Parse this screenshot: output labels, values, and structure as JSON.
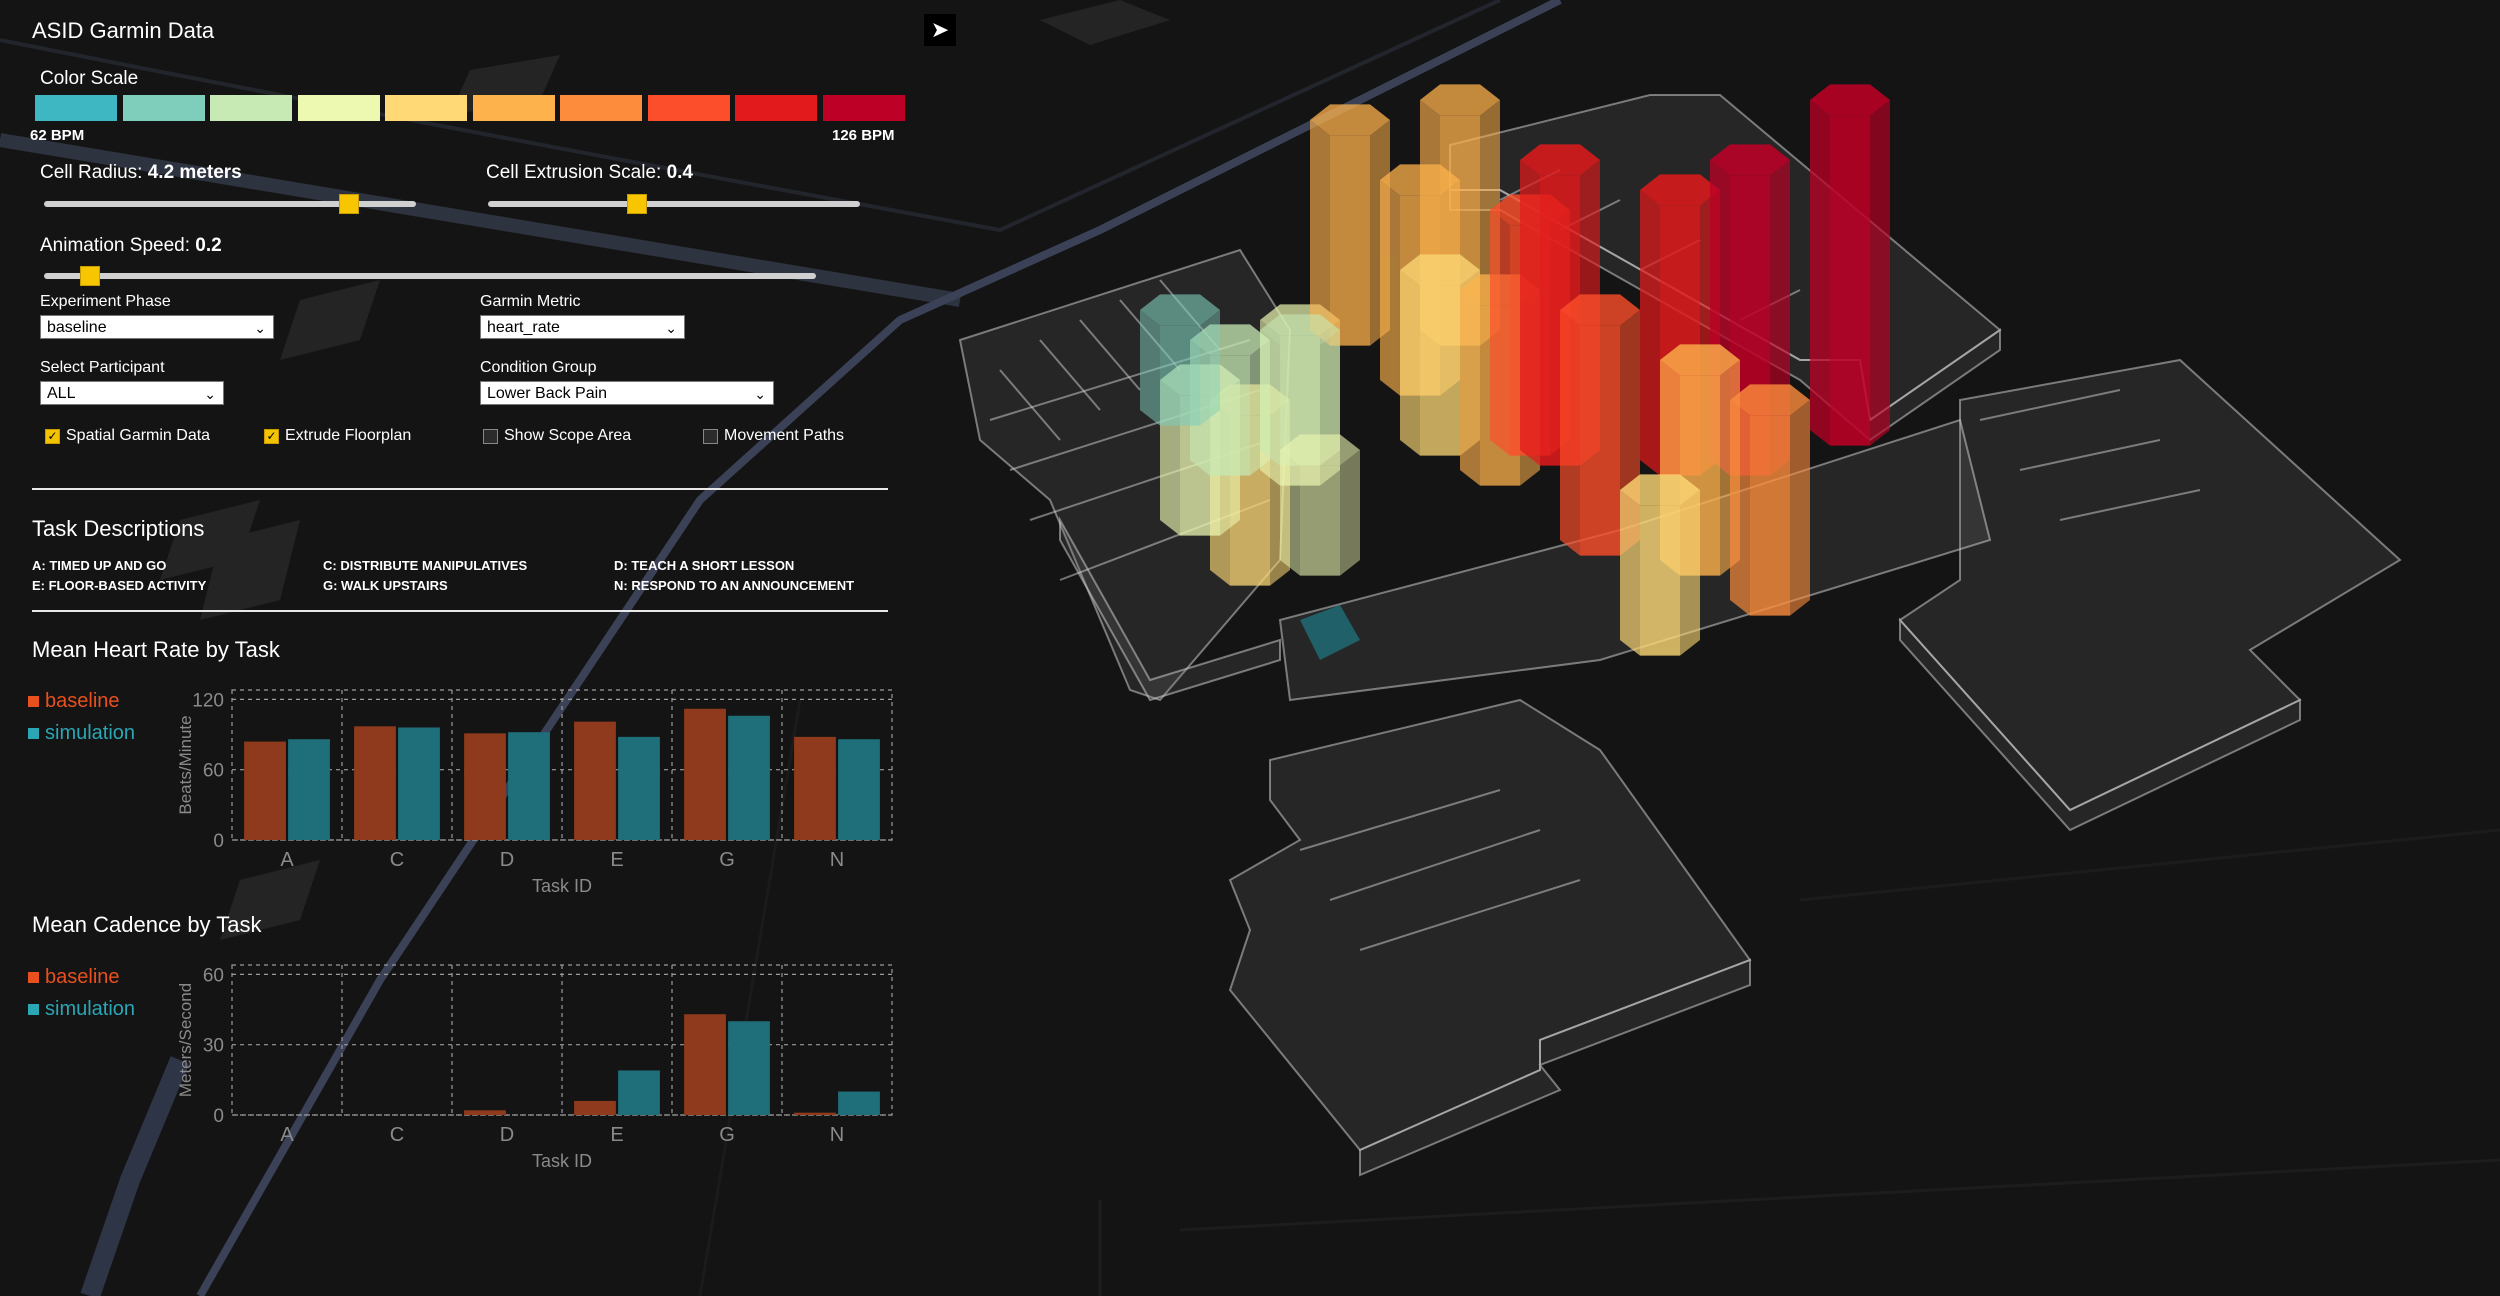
{
  "app": {
    "title": "ASID Garmin Data"
  },
  "color_scale": {
    "label": "Color Scale",
    "min_label": "62 BPM",
    "max_label": "126 BPM",
    "colors": [
      "#3fb7c2",
      "#7fcdbb",
      "#c7e9b4",
      "#edf8b1",
      "#fed976",
      "#feb24c",
      "#fd8d3c",
      "#fc4e2a",
      "#e31a1c",
      "#bd0026"
    ]
  },
  "controls": {
    "cell_radius": {
      "label": "Cell Radius: ",
      "value": "4.2 meters",
      "fraction": 0.82
    },
    "cell_extrusion": {
      "label": "Cell Extrusion Scale: ",
      "value": "0.4",
      "fraction": 0.4
    },
    "animation_speed": {
      "label": "Animation Speed: ",
      "value": "0.2",
      "fraction": 0.06
    },
    "experiment_phase": {
      "label": "Experiment Phase",
      "value": "baseline"
    },
    "garmin_metric": {
      "label": "Garmin Metric",
      "value": "heart_rate"
    },
    "participant": {
      "label": "Select Participant",
      "value": "ALL"
    },
    "condition_group": {
      "label": "Condition Group",
      "value": "Lower Back Pain"
    },
    "checkboxes": [
      {
        "label": "Spatial Garmin Data",
        "checked": true
      },
      {
        "label": "Extrude Floorplan",
        "checked": true
      },
      {
        "label": "Show Scope Area",
        "checked": false
      },
      {
        "label": "Movement Paths",
        "checked": false
      }
    ]
  },
  "tasks": {
    "title": "Task Descriptions",
    "items": [
      {
        "id": "A",
        "text": "A: TIMED UP AND GO"
      },
      {
        "id": "C",
        "text": "C: DISTRIBUTE MANIPULATIVES"
      },
      {
        "id": "D",
        "text": "D: TEACH A SHORT LESSON"
      },
      {
        "id": "E",
        "text": "E: FLOOR-BASED ACTIVITY"
      },
      {
        "id": "G",
        "text": "G: WALK UPSTAIRS"
      },
      {
        "id": "N",
        "text": "N: RESPOND TO AN ANNOUNCEMENT"
      }
    ]
  },
  "colors": {
    "baseline": "#e8501e",
    "simulation": "#2aa6b5",
    "baseline_bar": "#8f3a1c",
    "simulation_bar": "#1f6f7a"
  },
  "chart_data": [
    {
      "type": "bar",
      "title": "Mean Heart Rate by Task",
      "xlabel": "Task ID",
      "ylabel": "Beats/Minute",
      "categories": [
        "A",
        "C",
        "D",
        "E",
        "G",
        "N"
      ],
      "yticks": [
        0,
        60,
        120
      ],
      "ylim": [
        0,
        128
      ],
      "grid": true,
      "legend": "left",
      "series": [
        {
          "name": "baseline",
          "values": [
            84,
            97,
            91,
            101,
            112,
            88
          ]
        },
        {
          "name": "simulation",
          "values": [
            86,
            96,
            92,
            88,
            106,
            86
          ]
        }
      ]
    },
    {
      "type": "bar",
      "title": "Mean Cadence by Task",
      "xlabel": "Task ID",
      "ylabel": "Meters/Second",
      "categories": [
        "A",
        "C",
        "D",
        "E",
        "G",
        "N"
      ],
      "yticks": [
        0,
        30,
        60
      ],
      "ylim": [
        0,
        64
      ],
      "grid": true,
      "legend": "left",
      "series": [
        {
          "name": "baseline",
          "values": [
            0,
            0,
            2,
            6,
            43,
            1
          ]
        },
        {
          "name": "simulation",
          "values": [
            0,
            0,
            0,
            19,
            40,
            10
          ]
        }
      ]
    }
  ]
}
